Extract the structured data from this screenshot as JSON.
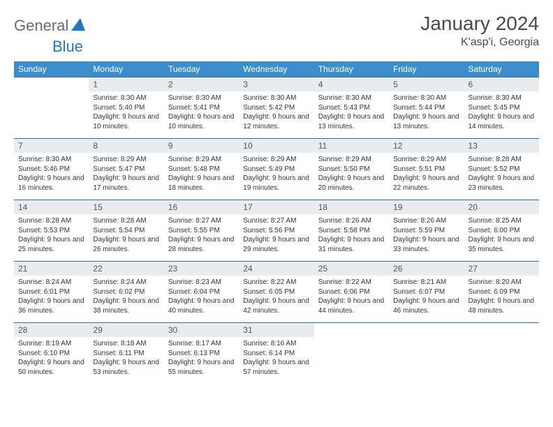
{
  "logo": {
    "general": "General",
    "blue": "Blue"
  },
  "title": "January 2024",
  "location": "K'asp'i, Georgia",
  "day_names": [
    "Sunday",
    "Monday",
    "Tuesday",
    "Wednesday",
    "Thursday",
    "Friday",
    "Saturday"
  ],
  "colors": {
    "header_bg": "#3c8ecb",
    "header_text": "#ffffff",
    "row_border": "#2d6fa8",
    "daynum_bg": "#e9ecef",
    "text": "#333333",
    "logo_gray": "#6b6b6b",
    "logo_blue": "#2176bd"
  },
  "weeks": [
    [
      {
        "n": "",
        "sr": "",
        "ss": "",
        "dl": ""
      },
      {
        "n": "1",
        "sr": "Sunrise: 8:30 AM",
        "ss": "Sunset: 5:40 PM",
        "dl": "Daylight: 9 hours and 10 minutes."
      },
      {
        "n": "2",
        "sr": "Sunrise: 8:30 AM",
        "ss": "Sunset: 5:41 PM",
        "dl": "Daylight: 9 hours and 10 minutes."
      },
      {
        "n": "3",
        "sr": "Sunrise: 8:30 AM",
        "ss": "Sunset: 5:42 PM",
        "dl": "Daylight: 9 hours and 12 minutes."
      },
      {
        "n": "4",
        "sr": "Sunrise: 8:30 AM",
        "ss": "Sunset: 5:43 PM",
        "dl": "Daylight: 9 hours and 13 minutes."
      },
      {
        "n": "5",
        "sr": "Sunrise: 8:30 AM",
        "ss": "Sunset: 5:44 PM",
        "dl": "Daylight: 9 hours and 13 minutes."
      },
      {
        "n": "6",
        "sr": "Sunrise: 8:30 AM",
        "ss": "Sunset: 5:45 PM",
        "dl": "Daylight: 9 hours and 14 minutes."
      }
    ],
    [
      {
        "n": "7",
        "sr": "Sunrise: 8:30 AM",
        "ss": "Sunset: 5:46 PM",
        "dl": "Daylight: 9 hours and 16 minutes."
      },
      {
        "n": "8",
        "sr": "Sunrise: 8:29 AM",
        "ss": "Sunset: 5:47 PM",
        "dl": "Daylight: 9 hours and 17 minutes."
      },
      {
        "n": "9",
        "sr": "Sunrise: 8:29 AM",
        "ss": "Sunset: 5:48 PM",
        "dl": "Daylight: 9 hours and 18 minutes."
      },
      {
        "n": "10",
        "sr": "Sunrise: 8:29 AM",
        "ss": "Sunset: 5:49 PM",
        "dl": "Daylight: 9 hours and 19 minutes."
      },
      {
        "n": "11",
        "sr": "Sunrise: 8:29 AM",
        "ss": "Sunset: 5:50 PM",
        "dl": "Daylight: 9 hours and 20 minutes."
      },
      {
        "n": "12",
        "sr": "Sunrise: 8:29 AM",
        "ss": "Sunset: 5:51 PM",
        "dl": "Daylight: 9 hours and 22 minutes."
      },
      {
        "n": "13",
        "sr": "Sunrise: 8:28 AM",
        "ss": "Sunset: 5:52 PM",
        "dl": "Daylight: 9 hours and 23 minutes."
      }
    ],
    [
      {
        "n": "14",
        "sr": "Sunrise: 8:28 AM",
        "ss": "Sunset: 5:53 PM",
        "dl": "Daylight: 9 hours and 25 minutes."
      },
      {
        "n": "15",
        "sr": "Sunrise: 8:28 AM",
        "ss": "Sunset: 5:54 PM",
        "dl": "Daylight: 9 hours and 26 minutes."
      },
      {
        "n": "16",
        "sr": "Sunrise: 8:27 AM",
        "ss": "Sunset: 5:55 PM",
        "dl": "Daylight: 9 hours and 28 minutes."
      },
      {
        "n": "17",
        "sr": "Sunrise: 8:27 AM",
        "ss": "Sunset: 5:56 PM",
        "dl": "Daylight: 9 hours and 29 minutes."
      },
      {
        "n": "18",
        "sr": "Sunrise: 8:26 AM",
        "ss": "Sunset: 5:58 PM",
        "dl": "Daylight: 9 hours and 31 minutes."
      },
      {
        "n": "19",
        "sr": "Sunrise: 8:26 AM",
        "ss": "Sunset: 5:59 PM",
        "dl": "Daylight: 9 hours and 33 minutes."
      },
      {
        "n": "20",
        "sr": "Sunrise: 8:25 AM",
        "ss": "Sunset: 6:00 PM",
        "dl": "Daylight: 9 hours and 35 minutes."
      }
    ],
    [
      {
        "n": "21",
        "sr": "Sunrise: 8:24 AM",
        "ss": "Sunset: 6:01 PM",
        "dl": "Daylight: 9 hours and 36 minutes."
      },
      {
        "n": "22",
        "sr": "Sunrise: 8:24 AM",
        "ss": "Sunset: 6:02 PM",
        "dl": "Daylight: 9 hours and 38 minutes."
      },
      {
        "n": "23",
        "sr": "Sunrise: 8:23 AM",
        "ss": "Sunset: 6:04 PM",
        "dl": "Daylight: 9 hours and 40 minutes."
      },
      {
        "n": "24",
        "sr": "Sunrise: 8:22 AM",
        "ss": "Sunset: 6:05 PM",
        "dl": "Daylight: 9 hours and 42 minutes."
      },
      {
        "n": "25",
        "sr": "Sunrise: 8:22 AM",
        "ss": "Sunset: 6:06 PM",
        "dl": "Daylight: 9 hours and 44 minutes."
      },
      {
        "n": "26",
        "sr": "Sunrise: 8:21 AM",
        "ss": "Sunset: 6:07 PM",
        "dl": "Daylight: 9 hours and 46 minutes."
      },
      {
        "n": "27",
        "sr": "Sunrise: 8:20 AM",
        "ss": "Sunset: 6:09 PM",
        "dl": "Daylight: 9 hours and 48 minutes."
      }
    ],
    [
      {
        "n": "28",
        "sr": "Sunrise: 8:19 AM",
        "ss": "Sunset: 6:10 PM",
        "dl": "Daylight: 9 hours and 50 minutes."
      },
      {
        "n": "29",
        "sr": "Sunrise: 8:18 AM",
        "ss": "Sunset: 6:11 PM",
        "dl": "Daylight: 9 hours and 53 minutes."
      },
      {
        "n": "30",
        "sr": "Sunrise: 8:17 AM",
        "ss": "Sunset: 6:13 PM",
        "dl": "Daylight: 9 hours and 55 minutes."
      },
      {
        "n": "31",
        "sr": "Sunrise: 8:16 AM",
        "ss": "Sunset: 6:14 PM",
        "dl": "Daylight: 9 hours and 57 minutes."
      },
      {
        "n": "",
        "sr": "",
        "ss": "",
        "dl": ""
      },
      {
        "n": "",
        "sr": "",
        "ss": "",
        "dl": ""
      },
      {
        "n": "",
        "sr": "",
        "ss": "",
        "dl": ""
      }
    ]
  ]
}
